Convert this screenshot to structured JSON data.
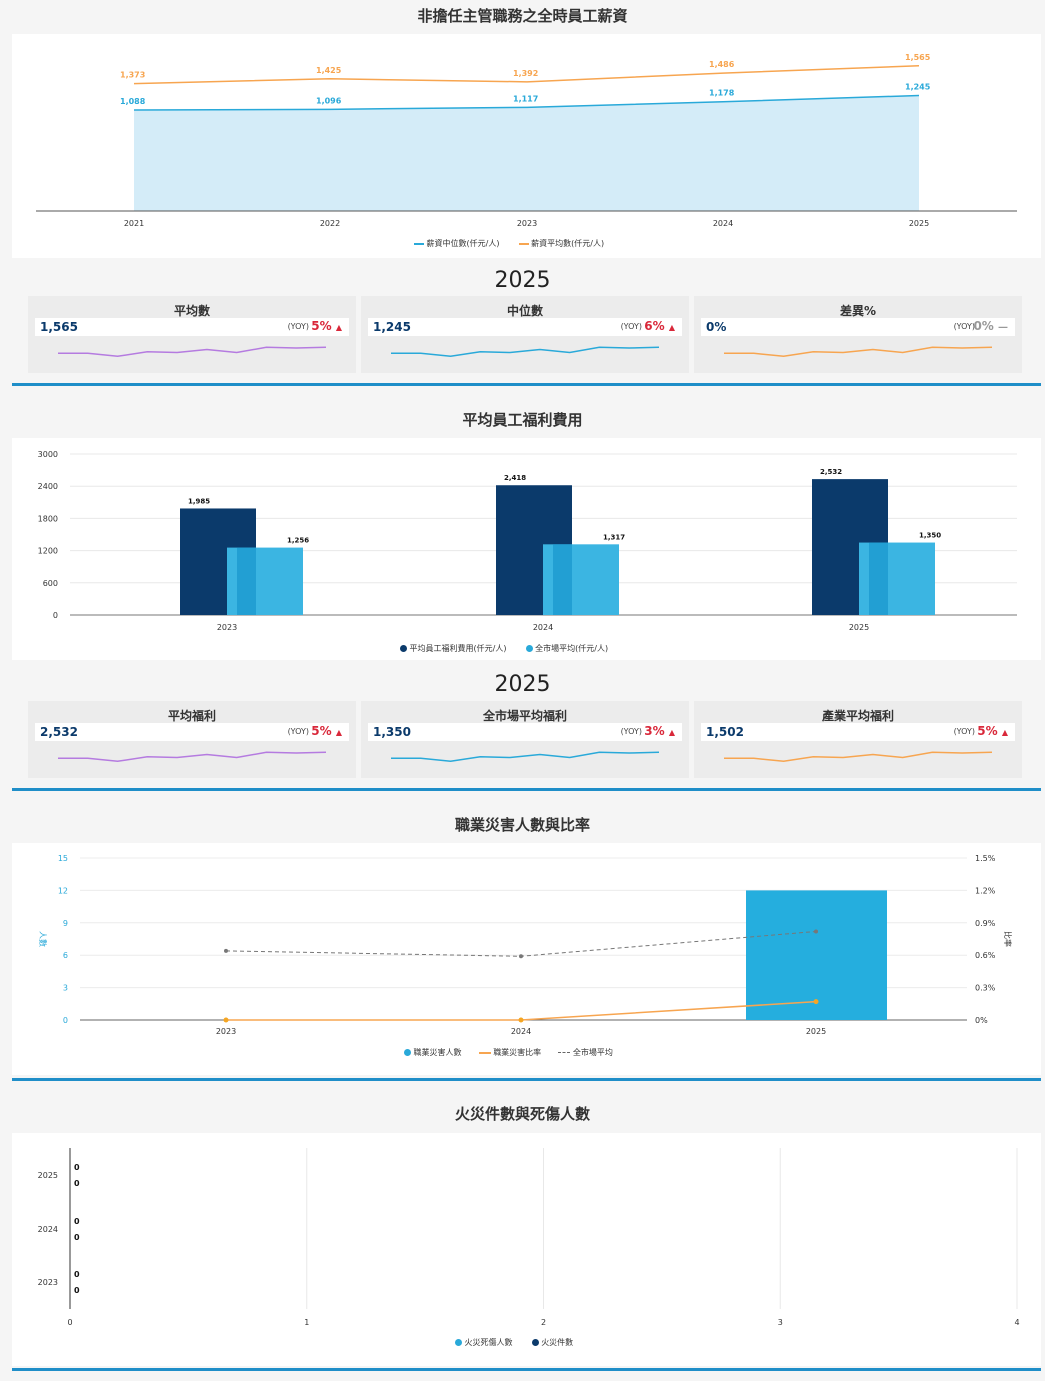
{
  "colors": {
    "blue": "#29a9d9",
    "orange": "#f7a550",
    "navy": "#0b3a6b",
    "purple": "#b57be0",
    "red": "#d9283a",
    "grey": "#999999"
  },
  "salary": {
    "title": "非擔任主管職務之全時員工薪資",
    "chart_data": {
      "type": "area",
      "x": [
        "2021",
        "2022",
        "2023",
        "2024",
        "2025"
      ],
      "series": [
        {
          "name": "薪資中位數(仟元/人)",
          "values": [
            1088,
            1096,
            1117,
            1178,
            1245
          ],
          "labels": [
            "1,088",
            "1,096",
            "1,117",
            "1,178",
            "1,245"
          ]
        },
        {
          "name": "薪資平均數(仟元/人)",
          "values": [
            1373,
            1425,
            1392,
            1486,
            1565
          ],
          "labels": [
            "1,373",
            "1,425",
            "1,392",
            "1,486",
            "1,565"
          ]
        }
      ]
    },
    "year_title": "2025",
    "cards": [
      {
        "title": "平均數",
        "value": "1,565",
        "yoy_label": "(YOY)",
        "yoy": "5%",
        "arrow": "▲"
      },
      {
        "title": "中位數",
        "value": "1,245",
        "yoy_label": "(YOY)",
        "yoy": "6%",
        "arrow": "▲"
      },
      {
        "title": "差異%",
        "value": "0%",
        "yoy_label": "(YOY)",
        "yoy": "0%",
        "arrow": "—"
      }
    ]
  },
  "welfare": {
    "title": "平均員工福利費用",
    "chart_data": {
      "type": "bar",
      "categories": [
        "2023",
        "2024",
        "2025"
      ],
      "series": [
        {
          "name": "平均員工福利費用(仟元/人)",
          "values": [
            1985,
            2418,
            2532
          ],
          "labels": [
            "1,985",
            "2,418",
            "2,532"
          ]
        },
        {
          "name": "全市場平均(仟元/人)",
          "values": [
            1256,
            1317,
            1350
          ],
          "labels": [
            "1,256",
            "1,317",
            "1,350"
          ]
        }
      ],
      "yticks": [
        "3000",
        "2400",
        "1800",
        "1200",
        "600",
        "0"
      ],
      "ylim": [
        0,
        3000
      ]
    },
    "year_title": "2025",
    "cards": [
      {
        "title": "平均福利",
        "value": "2,532",
        "yoy_label": "(YOY)",
        "yoy": "5%",
        "arrow": "▲"
      },
      {
        "title": "全市場平均福利",
        "value": "1,350",
        "yoy_label": "(YOY)",
        "yoy": "3%",
        "arrow": "▲"
      },
      {
        "title": "產業平均福利",
        "value": "1,502",
        "yoy_label": "(YOY)",
        "yoy": "5%",
        "arrow": "▲"
      }
    ]
  },
  "injury": {
    "title": "職業災害人數與比率",
    "chart_data": {
      "type": "bar",
      "categories": [
        "2023",
        "2024",
        "2025"
      ],
      "series": [
        {
          "name": "職業災害人數",
          "values": [
            0,
            0,
            12
          ]
        },
        {
          "name": "職業災害比率",
          "values": [
            0,
            0,
            0.17
          ]
        },
        {
          "name": "全市場平均",
          "values": [
            0.64,
            0.59,
            0.82
          ]
        }
      ],
      "yticks_left": [
        "15",
        "12",
        "9",
        "6",
        "3",
        "0"
      ],
      "yticks_right": [
        "1.5%",
        "1.2%",
        "0.9%",
        "0.6%",
        "0.3%",
        "0%"
      ],
      "ylabel_left": "人數",
      "ylabel_right": "比率",
      "ylim_left": [
        0,
        15
      ],
      "ylim_right": [
        0,
        1.5
      ]
    }
  },
  "fire": {
    "title": "火災件數與死傷人數",
    "chart_data": {
      "type": "bar",
      "orientation": "horizontal",
      "categories": [
        "2025",
        "2024",
        "2023"
      ],
      "series": [
        {
          "name": "火災死傷人數",
          "values": [
            0,
            0,
            0
          ],
          "labels": [
            "0",
            "0",
            "0"
          ]
        },
        {
          "name": "火災件數",
          "values": [
            0,
            0,
            0
          ],
          "labels": [
            "0",
            "0",
            "0"
          ]
        }
      ],
      "xticks": [
        "0",
        "1",
        "2",
        "3",
        "4"
      ],
      "xlim": [
        0,
        4
      ]
    }
  }
}
